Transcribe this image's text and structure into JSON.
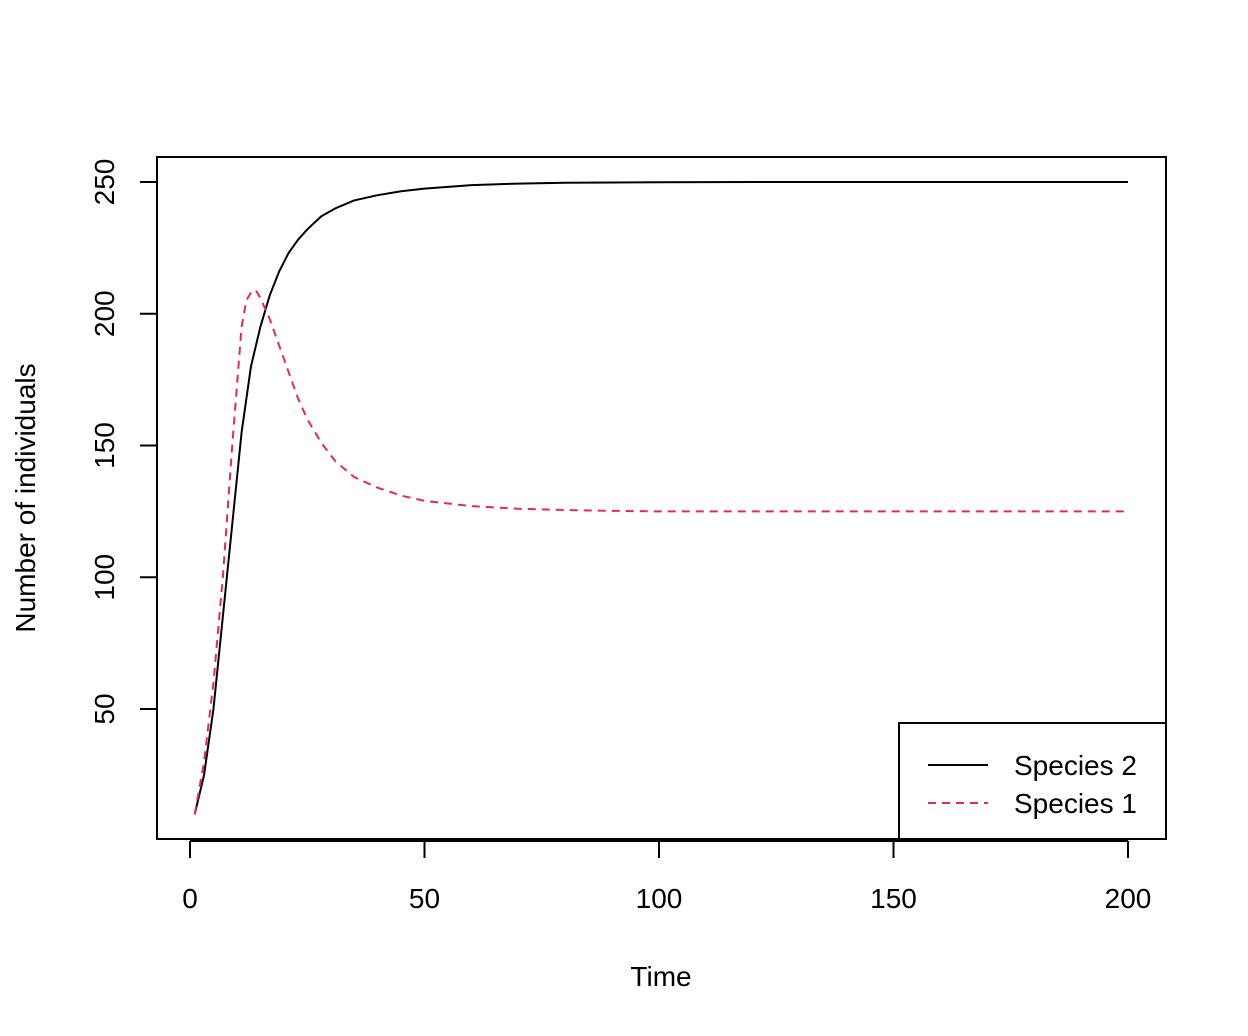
{
  "chart_data": {
    "type": "line",
    "title": "",
    "xlabel": "Time",
    "ylabel": "Number of individuals",
    "xlim": [
      0,
      200
    ],
    "ylim": [
      10,
      250
    ],
    "xticks": [
      0,
      50,
      100,
      150,
      200
    ],
    "yticks": [
      50,
      100,
      150,
      200,
      250
    ],
    "grid": false,
    "legend_position": "bottom-right",
    "series": [
      {
        "name": "Species 2",
        "color": "#000000",
        "dash": "solid",
        "x": [
          1,
          3,
          5,
          7,
          9,
          11,
          13,
          15,
          17,
          19,
          21,
          23,
          25,
          28,
          31,
          35,
          40,
          45,
          50,
          60,
          70,
          80,
          100,
          120,
          150,
          200
        ],
        "y": [
          10,
          25,
          50,
          85,
          120,
          155,
          180,
          195,
          207,
          216,
          223,
          228,
          232,
          237,
          240,
          243,
          245,
          246.5,
          247.5,
          248.8,
          249.4,
          249.7,
          249.9,
          250,
          250,
          250
        ]
      },
      {
        "name": "Species 1",
        "color": "#DF2E4F",
        "dash": "dashed",
        "x": [
          1,
          3,
          5,
          7,
          9,
          11,
          12,
          13,
          14,
          15,
          17,
          19,
          21,
          23,
          25,
          28,
          31,
          35,
          40,
          45,
          50,
          55,
          60,
          70,
          80,
          90,
          100,
          120,
          150,
          200
        ],
        "y": [
          10,
          30,
          60,
          100,
          150,
          195,
          205,
          208,
          209,
          206,
          198,
          188,
          178,
          168,
          160,
          151,
          144,
          138,
          134,
          131,
          129,
          128,
          127,
          126,
          125.5,
          125.2,
          125,
          125,
          125,
          125
        ]
      }
    ]
  }
}
